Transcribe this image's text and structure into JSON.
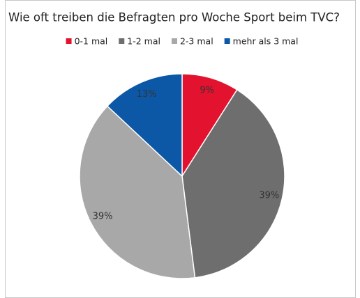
{
  "chart_data": {
    "type": "pie",
    "title": "Wie oft treiben die Befragten pro Woche Sport beim TVC?",
    "categories": [
      "0-1 mal",
      "1-2 mal",
      "2-3 mal",
      "mehr als 3 mal"
    ],
    "values": [
      9,
      39,
      39,
      13
    ],
    "value_labels": [
      "9%",
      "39%",
      "39%",
      "13%"
    ],
    "colors": [
      "#e3122f",
      "#6e6e6e",
      "#a8a8a8",
      "#0c58a6"
    ],
    "legend": "top"
  }
}
